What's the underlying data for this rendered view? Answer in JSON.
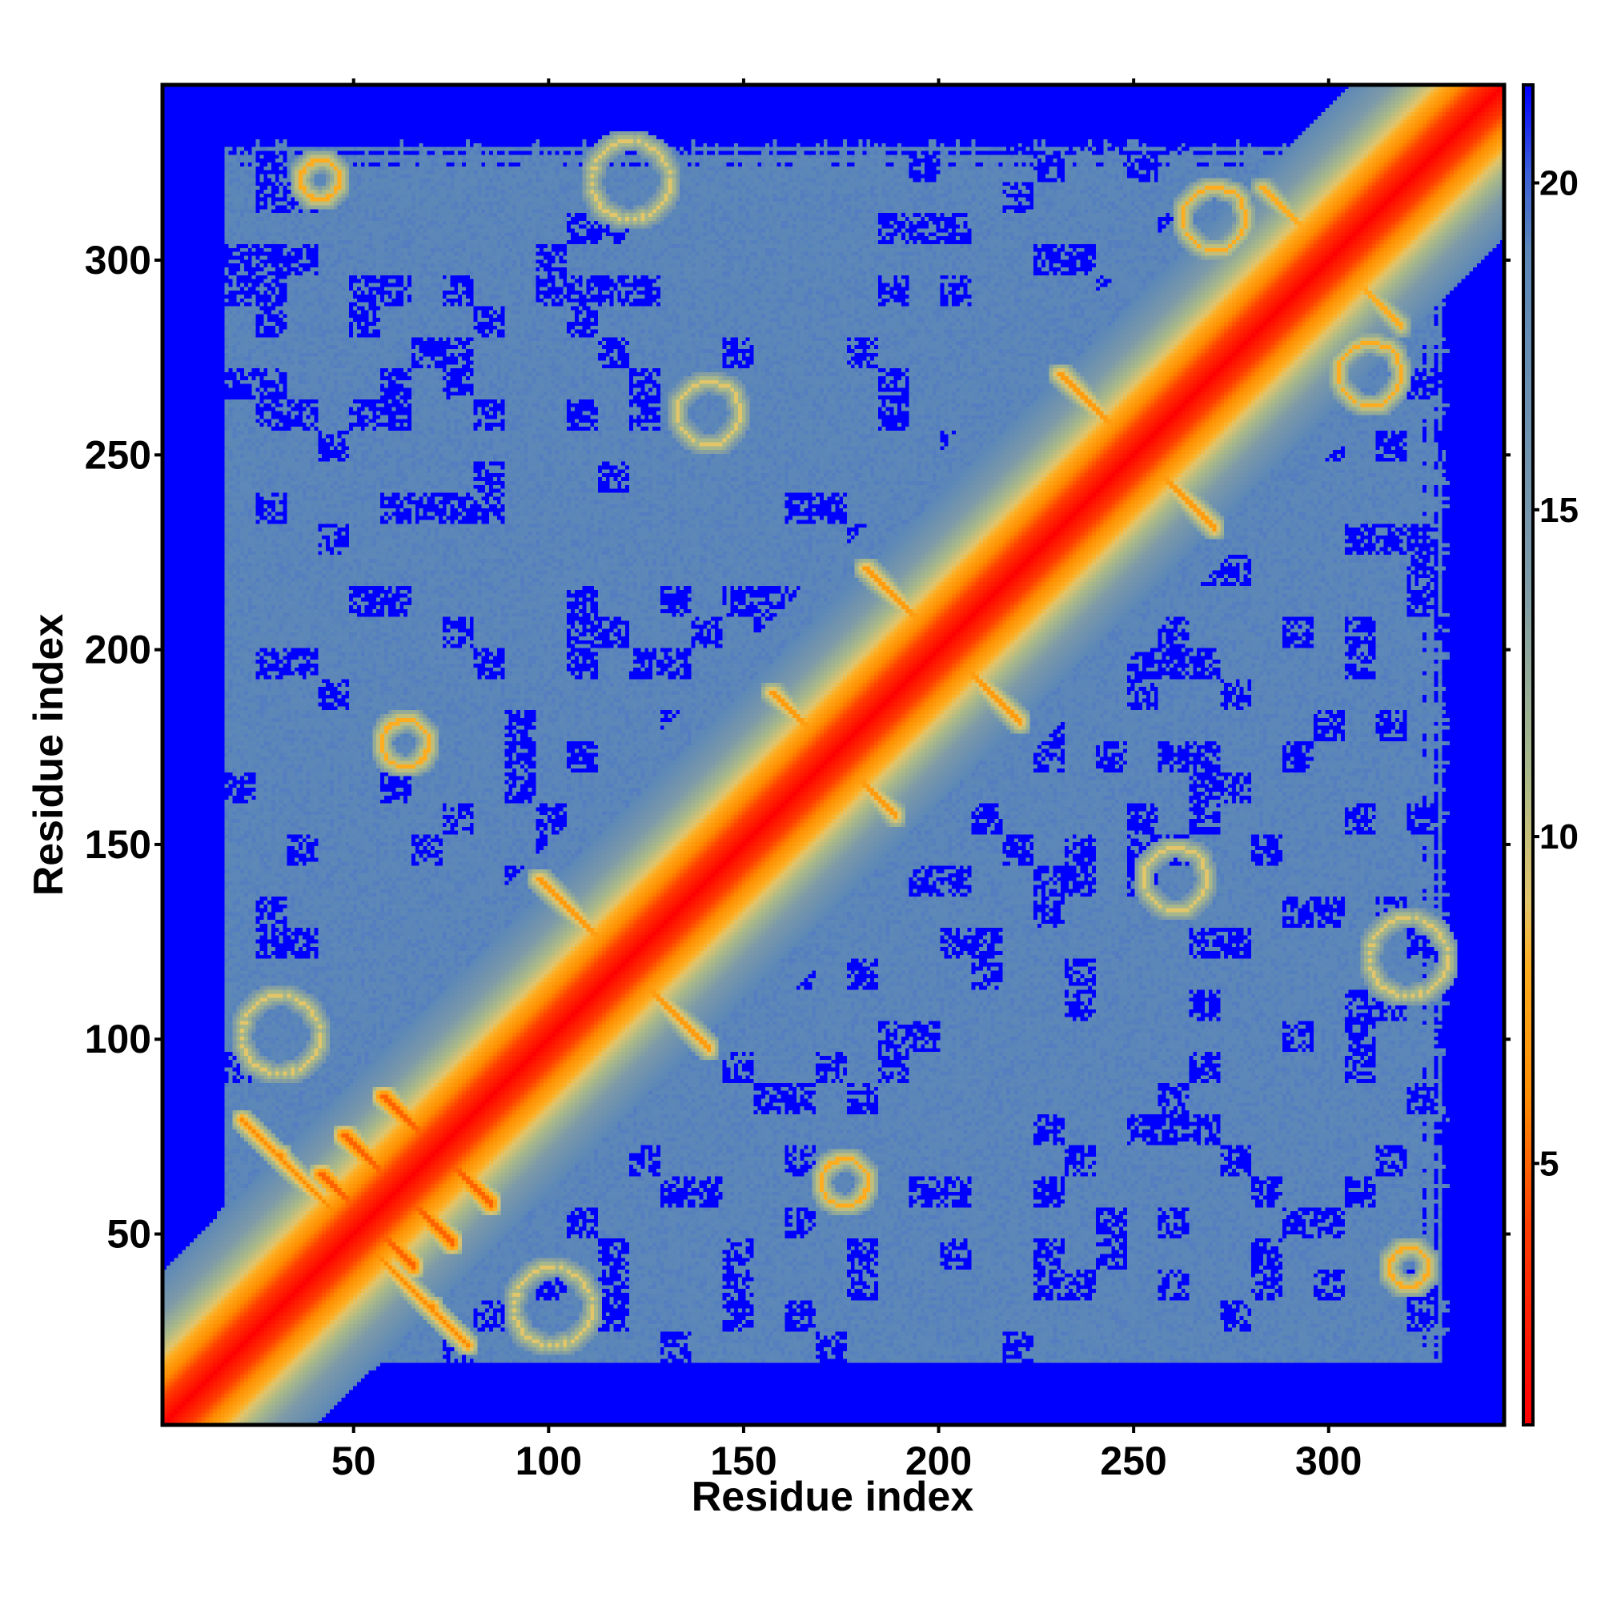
{
  "chart_data": {
    "type": "heatmap",
    "title": "",
    "xlabel": "Residue index",
    "ylabel": "Residue index",
    "n_residues": 345,
    "xlim": [
      1,
      345
    ],
    "ylim": [
      1,
      345
    ],
    "x_ticks": [
      50,
      100,
      150,
      200,
      250,
      300
    ],
    "y_ticks": [
      50,
      100,
      150,
      200,
      250,
      300
    ],
    "grid": false,
    "colorbar": {
      "placement": "right",
      "range": [
        1,
        21.5
      ],
      "ticks": [
        5,
        10,
        15,
        20
      ],
      "colors": [
        {
          "value": 1,
          "color": "#ff0000"
        },
        {
          "value": 4,
          "color": "#ff3b00"
        },
        {
          "value": 6,
          "color": "#ff8c00"
        },
        {
          "value": 8,
          "color": "#ffad1f"
        },
        {
          "value": 9,
          "color": "#e3c56a"
        },
        {
          "value": 11,
          "color": "#a9b98a"
        },
        {
          "value": 14,
          "color": "#7d9aa8"
        },
        {
          "value": 19,
          "color": "#5b87b8"
        },
        {
          "value": 20.2,
          "color": "#3a5fd8"
        },
        {
          "value": 21.5,
          "color": "#0000ff"
        }
      ]
    },
    "diagonal_value": 1,
    "background_value": 21.5,
    "domain_value": 19,
    "contact_features": [
      {
        "kind": "parallel",
        "from": [
          20,
          78
        ],
        "to": [
          58,
          40
        ],
        "value": 6
      },
      {
        "kind": "antiparallel",
        "center": [
          60,
          60
        ],
        "half_length": 14,
        "value": 5
      },
      {
        "kind": "antiparallel",
        "center": [
          52,
          52
        ],
        "half_length": 12,
        "value": 5
      },
      {
        "kind": "antiparallel",
        "center": [
          70,
          70
        ],
        "half_length": 14,
        "value": 5
      },
      {
        "kind": "antiparallel",
        "center": [
          118,
          118
        ],
        "half_length": 22,
        "value": 7
      },
      {
        "kind": "antiparallel",
        "center": [
          172,
          172
        ],
        "half_length": 16,
        "value": 7
      },
      {
        "kind": "antiparallel",
        "center": [
          200,
          200
        ],
        "half_length": 20,
        "value": 7
      },
      {
        "kind": "antiparallel",
        "center": [
          250,
          250
        ],
        "half_length": 20,
        "value": 7
      },
      {
        "kind": "antiparallel",
        "center": [
          300,
          300
        ],
        "half_length": 18,
        "value": 8
      },
      {
        "kind": "blob",
        "center": [
          62,
          175
        ],
        "radius": 6,
        "value": 8
      },
      {
        "kind": "blob",
        "center": [
          175,
          62
        ],
        "radius": 6,
        "value": 8
      },
      {
        "kind": "blob",
        "center": [
          120,
          320
        ],
        "radius": 10,
        "value": 9
      },
      {
        "kind": "blob",
        "center": [
          320,
          120
        ],
        "radius": 10,
        "value": 9
      },
      {
        "kind": "blob",
        "center": [
          40,
          320
        ],
        "radius": 5,
        "value": 8
      },
      {
        "kind": "blob",
        "center": [
          320,
          40
        ],
        "radius": 5,
        "value": 8
      },
      {
        "kind": "blob",
        "center": [
          260,
          140
        ],
        "radius": 8,
        "value": 9
      },
      {
        "kind": "blob",
        "center": [
          140,
          260
        ],
        "radius": 8,
        "value": 9
      },
      {
        "kind": "blob",
        "center": [
          310,
          270
        ],
        "radius": 8,
        "value": 8
      },
      {
        "kind": "blob",
        "center": [
          270,
          310
        ],
        "radius": 8,
        "value": 8
      },
      {
        "kind": "blob",
        "center": [
          100,
          30
        ],
        "radius": 10,
        "value": 9
      },
      {
        "kind": "blob",
        "center": [
          30,
          100
        ],
        "radius": 10,
        "value": 9
      }
    ]
  }
}
